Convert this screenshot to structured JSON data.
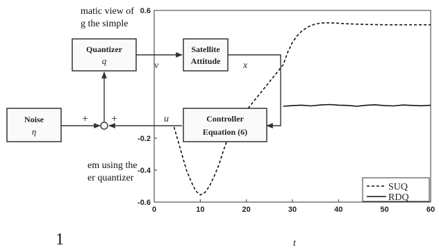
{
  "text": {
    "para1_line1": "matic view of",
    "para1_line2": "g the simple",
    "para2_line1": "em using the",
    "para2_line2": "er quantizer",
    "footer_fragment": "1"
  },
  "blocks": {
    "quantizer": {
      "title": "Quantizer",
      "symbol": "q"
    },
    "satellite": {
      "title1": "Satellite",
      "title2": "Attitude"
    },
    "noise": {
      "title": "Noise",
      "symbol": "η"
    },
    "controller": {
      "title1": "Controller",
      "title2": "Equation (6)"
    }
  },
  "signals": {
    "v": "v",
    "x": "x",
    "u": "u",
    "plus1": "+",
    "plus2": "+"
  },
  "chart_data": {
    "type": "line",
    "xlabel": "t",
    "ylabel": "",
    "xlim": [
      0,
      60
    ],
    "ylim": [
      -0.6,
      0.6
    ],
    "x_ticks": [
      0,
      10,
      20,
      30,
      40,
      50,
      60
    ],
    "y_ticks": [
      -0.6,
      -0.4,
      -0.2,
      0.6
    ],
    "legend_position": "bottom-right",
    "series": [
      {
        "name": "SUQ",
        "style": "dashed",
        "x": [
          4.3,
          5,
          6,
          7,
          8,
          9,
          10,
          11,
          12,
          13,
          14,
          15,
          16,
          17,
          18.5,
          28,
          29,
          30,
          31,
          32,
          33,
          34,
          35,
          36,
          37,
          38,
          39,
          40,
          41,
          42,
          44,
          46,
          50,
          55,
          60
        ],
        "y": [
          -0.13,
          -0.2,
          -0.3,
          -0.4,
          -0.47,
          -0.53,
          -0.555,
          -0.54,
          -0.5,
          -0.44,
          -0.37,
          -0.28,
          -0.2,
          -0.12,
          -0.08,
          0.26,
          0.34,
          0.4,
          0.44,
          0.47,
          0.49,
          0.505,
          0.515,
          0.52,
          0.522,
          0.522,
          0.521,
          0.52,
          0.518,
          0.516,
          0.514,
          0.512,
          0.51,
          0.51,
          0.51
        ]
      },
      {
        "name": "RDQ",
        "style": "solid",
        "x": [
          28,
          30,
          32,
          34,
          36,
          38,
          40,
          42,
          44,
          46,
          48,
          50,
          52,
          54,
          56,
          58,
          60
        ],
        "y": [
          0.0,
          0.004,
          0.007,
          0.002,
          0.008,
          0.011,
          0.007,
          0.005,
          0.0,
          0.006,
          0.009,
          0.004,
          0.002,
          0.008,
          0.005,
          0.003,
          0.006
        ]
      }
    ]
  }
}
